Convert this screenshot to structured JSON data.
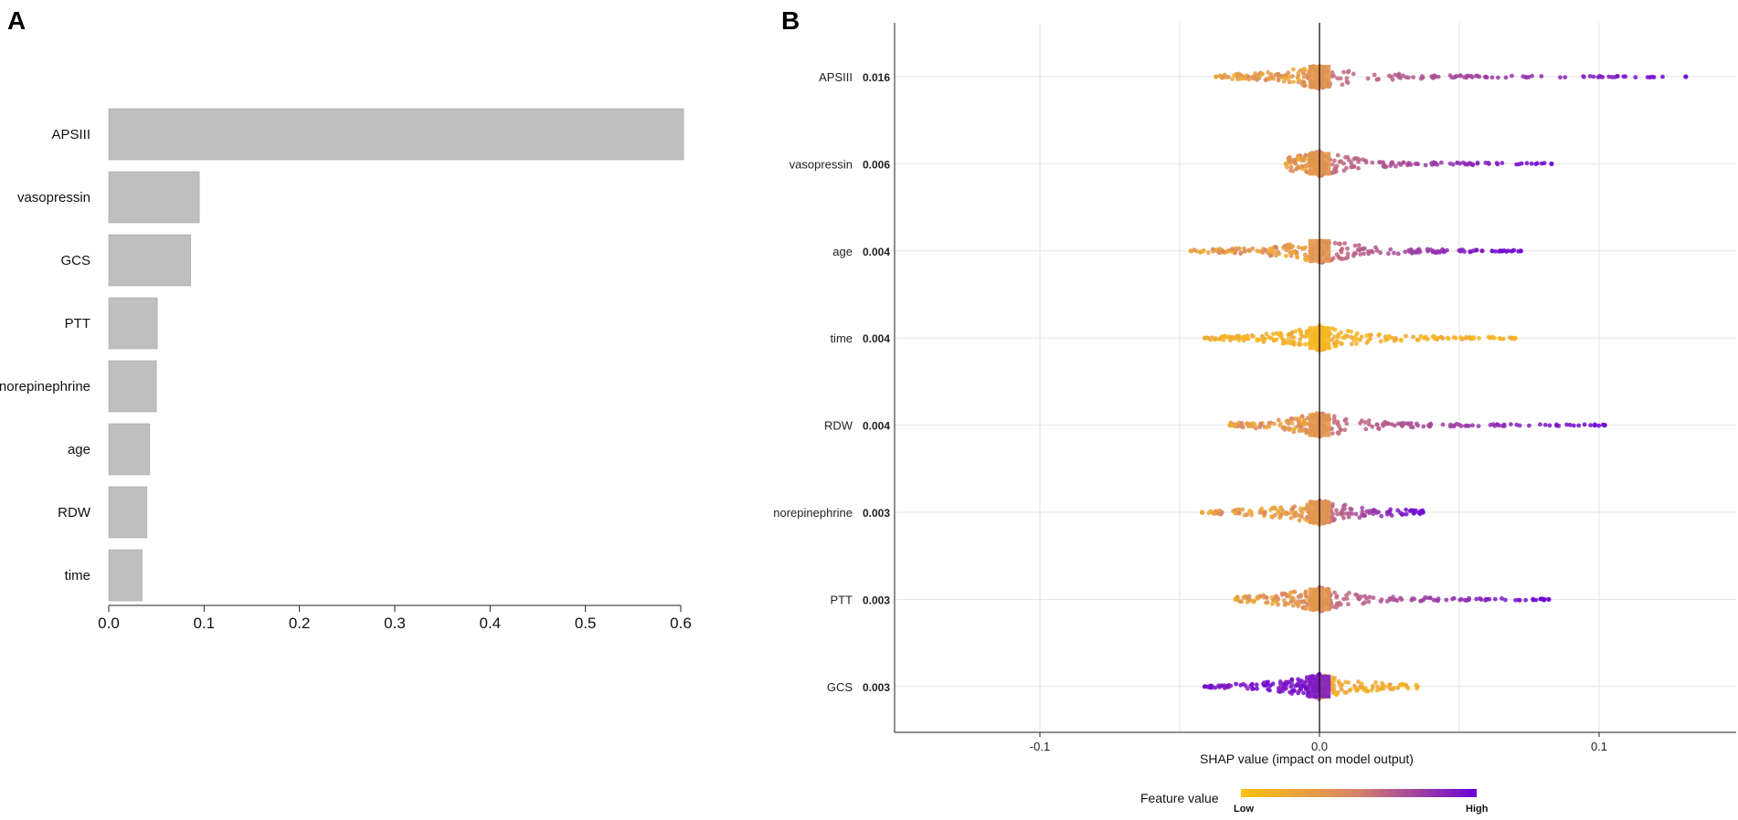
{
  "panels": {
    "a_label": "A",
    "b_label": "B"
  },
  "colors": {
    "bar": "#bfbfbf",
    "bar_stroke": "#a8a8a8",
    "low": "#ffc20e",
    "mid": "#d5826a",
    "high": "#6a00d8",
    "grid": "#e3e3e3"
  },
  "chart_data": [
    {
      "type": "bar",
      "orientation": "horizontal",
      "panel": "A",
      "categories": [
        "APSIII",
        "vasopressin",
        "GCS",
        "PTT",
        "norepinephrine",
        "age",
        "RDW",
        "time"
      ],
      "values": [
        0.603,
        0.095,
        0.086,
        0.051,
        0.05,
        0.043,
        0.04,
        0.035
      ],
      "xlim": [
        0,
        0.6
      ],
      "xticks": [
        0.0,
        0.1,
        0.2,
        0.3,
        0.4,
        0.5,
        0.6
      ],
      "xtick_labels": [
        "0.0",
        "0.1",
        "0.2",
        "0.3",
        "0.4",
        "0.5",
        "0.6"
      ],
      "title": "",
      "xlabel": "",
      "ylabel": ""
    },
    {
      "type": "scatter",
      "subtype": "shap-summary-beeswarm",
      "panel": "B",
      "features": [
        "APSIII",
        "vasopressin",
        "age",
        "time",
        "RDW",
        "norepinephrine",
        "PTT",
        "GCS"
      ],
      "importance_labels": [
        "0.016",
        "0.006",
        "0.004",
        "0.004",
        "0.004",
        "0.003",
        "0.003",
        "0.003"
      ],
      "shap_ranges": [
        {
          "feature": "APSIII",
          "min": -0.037,
          "max": 0.131,
          "low_side": "negative"
        },
        {
          "feature": "vasopressin",
          "min": -0.012,
          "max": 0.083,
          "low_side": "negative"
        },
        {
          "feature": "age",
          "min": -0.046,
          "max": 0.072,
          "low_side": "negative"
        },
        {
          "feature": "time",
          "min": -0.041,
          "max": 0.07,
          "low_side": "mixed"
        },
        {
          "feature": "RDW",
          "min": -0.032,
          "max": 0.102,
          "low_side": "negative"
        },
        {
          "feature": "norepinephrine",
          "min": -0.042,
          "max": 0.037,
          "low_side": "negative"
        },
        {
          "feature": "PTT",
          "min": -0.03,
          "max": 0.082,
          "low_side": "negative"
        },
        {
          "feature": "GCS",
          "min": -0.041,
          "max": 0.035,
          "low_side": "positive"
        }
      ],
      "xlim": [
        -0.15,
        0.15
      ],
      "xticks": [
        -0.1,
        0.0,
        0.1
      ],
      "xtick_labels": [
        "-0.1",
        "0.0",
        "0.1"
      ],
      "xlabel": "SHAP value (impact on model output)",
      "legend": {
        "title": "Feature value",
        "low": "Low",
        "high": "High",
        "position": "bottom"
      }
    }
  ]
}
